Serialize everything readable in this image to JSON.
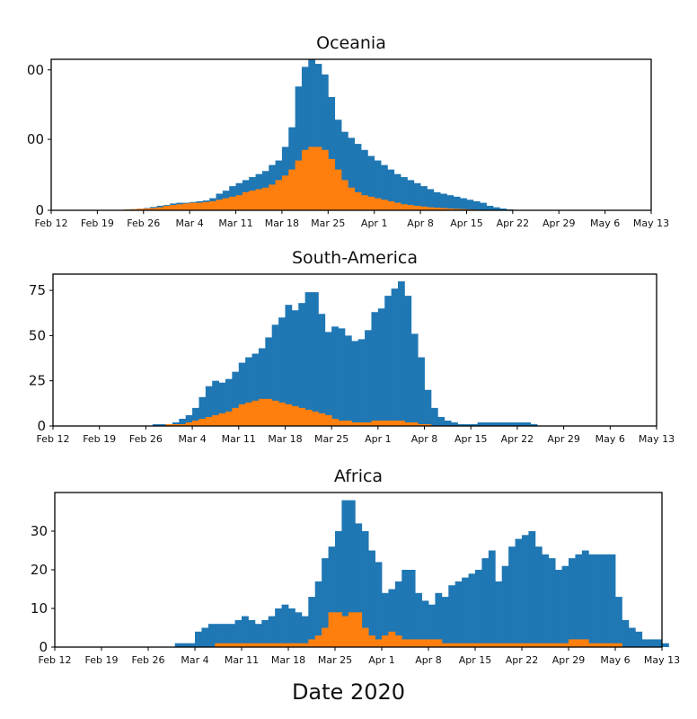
{
  "figure": {
    "xlabel": "Date 2020"
  },
  "colors": {
    "series_blue": "#1f77b4",
    "series_orange": "#ff7f0e",
    "axis": "#000000"
  },
  "chart_data": [
    {
      "type": "bar",
      "stacked": false,
      "title": "Oceania",
      "xlabel": "",
      "ylabel": "",
      "x_tick_labels": [
        "Feb 12",
        "Feb 19",
        "Feb 26",
        "Mar 4",
        "Mar 11",
        "Mar 18",
        "Mar 25",
        "Apr 1",
        "Apr 8",
        "Apr 15",
        "Apr 22",
        "Apr 29",
        "May 6",
        "May 13"
      ],
      "y_tick_labels": [
        "0",
        "00",
        "00"
      ],
      "y_tick_fractions": [
        0,
        0.47,
        0.93
      ],
      "ylim": [
        0,
        1
      ],
      "grid": false,
      "start_date": "2020-02-12",
      "series": [
        {
          "values": [
            0,
            0,
            0,
            0,
            0,
            0,
            0,
            0,
            0,
            0,
            0.003,
            0.005,
            0.007,
            0.01,
            0.015,
            0.022,
            0.03,
            0.035,
            0.045,
            0.05,
            0.05,
            0.055,
            0.06,
            0.065,
            0.08,
            0.11,
            0.13,
            0.16,
            0.18,
            0.2,
            0.22,
            0.24,
            0.26,
            0.3,
            0.33,
            0.42,
            0.55,
            0.82,
            0.95,
            1.0,
            0.97,
            0.9,
            0.75,
            0.6,
            0.52,
            0.48,
            0.44,
            0.4,
            0.36,
            0.33,
            0.3,
            0.27,
            0.24,
            0.22,
            0.2,
            0.18,
            0.16,
            0.14,
            0.12,
            0.11,
            0.1,
            0.09,
            0.08,
            0.07,
            0.06,
            0.05,
            0.03,
            0.02,
            0.012,
            0.006,
            0.003,
            0,
            0,
            0,
            0,
            0,
            0,
            0,
            0,
            0,
            0,
            0,
            0,
            0,
            0,
            0,
            0,
            0,
            0,
            0,
            0,
            0
          ]
        },
        {
          "values": [
            0,
            0,
            0,
            0,
            0,
            0,
            0,
            0,
            0,
            0,
            0.003,
            0.005,
            0.007,
            0.01,
            0.012,
            0.015,
            0.02,
            0.03,
            0.035,
            0.04,
            0.045,
            0.05,
            0.05,
            0.055,
            0.06,
            0.07,
            0.08,
            0.09,
            0.1,
            0.12,
            0.13,
            0.14,
            0.15,
            0.17,
            0.2,
            0.23,
            0.27,
            0.33,
            0.4,
            0.42,
            0.42,
            0.4,
            0.34,
            0.27,
            0.2,
            0.15,
            0.12,
            0.1,
            0.09,
            0.08,
            0.07,
            0.06,
            0.05,
            0.04,
            0.035,
            0.03,
            0.025,
            0.02,
            0.017,
            0.015,
            0.012,
            0.01,
            0.008,
            0.006,
            0.004,
            0.003,
            0.002,
            0.001,
            0,
            0,
            0,
            0,
            0,
            0,
            0,
            0,
            0,
            0,
            0,
            0,
            0,
            0,
            0,
            0,
            0,
            0,
            0,
            0,
            0,
            0,
            0
          ]
        }
      ]
    },
    {
      "type": "bar",
      "stacked": false,
      "title": "South-America",
      "xlabel": "",
      "ylabel": "",
      "x_tick_labels": [
        "Feb 12",
        "Feb 19",
        "Feb 26",
        "Mar 4",
        "Mar 11",
        "Mar 18",
        "Mar 25",
        "Apr 1",
        "Apr 8",
        "Apr 15",
        "Apr 22",
        "Apr 29",
        "May 6",
        "May 13"
      ],
      "y_ticks": [
        0,
        25,
        50,
        75
      ],
      "ylim": [
        0,
        84
      ],
      "grid": false,
      "start_date": "2020-02-12",
      "series": [
        {
          "values": [
            0,
            0,
            0,
            0,
            0,
            0,
            0,
            0,
            0,
            0,
            0,
            0,
            0,
            0,
            0,
            1,
            1,
            1,
            2,
            4,
            6,
            10,
            16,
            22,
            25,
            24,
            26,
            30,
            35,
            38,
            40,
            43,
            49,
            56,
            60,
            67,
            64,
            68,
            74,
            74,
            62,
            52,
            55,
            54,
            50,
            47,
            48,
            53,
            63,
            65,
            72,
            76,
            80,
            72,
            51,
            38,
            20,
            10,
            5,
            3,
            2,
            1,
            1,
            1,
            2,
            2,
            2,
            2,
            2,
            2,
            2,
            2,
            1,
            0,
            0,
            0,
            0,
            0,
            0,
            0,
            0,
            0,
            0,
            0,
            0,
            0,
            0,
            0,
            0,
            0,
            0
          ]
        },
        {
          "values": [
            0,
            0,
            0,
            0,
            0,
            0,
            0,
            0,
            0,
            0,
            0,
            0,
            0,
            0,
            0,
            0,
            0,
            1,
            1,
            1,
            2,
            3,
            4,
            5,
            6,
            7,
            8,
            10,
            12,
            13,
            14,
            15,
            15,
            14,
            13,
            12,
            11,
            10,
            9,
            8,
            7,
            6,
            4,
            3,
            3,
            2,
            2,
            2,
            3,
            3,
            3,
            3,
            3,
            2,
            2,
            1,
            1,
            0,
            0,
            0,
            0,
            0,
            0,
            0,
            0,
            0,
            0,
            0,
            0,
            0,
            0,
            0,
            0,
            0,
            0,
            0,
            0,
            0,
            0,
            0,
            0,
            0,
            0,
            0,
            0,
            0,
            0,
            0,
            0,
            0,
            0
          ]
        }
      ]
    },
    {
      "type": "bar",
      "stacked": false,
      "title": "Africa",
      "xlabel": "",
      "ylabel": "",
      "x_tick_labels": [
        "Feb 12",
        "Feb 19",
        "Feb 26",
        "Mar 4",
        "Mar 11",
        "Mar 18",
        "Mar 25",
        "Apr 1",
        "Apr 8",
        "Apr 15",
        "Apr 22",
        "Apr 29",
        "May 6",
        "May 13"
      ],
      "y_ticks": [
        0,
        10,
        20,
        30
      ],
      "ylim": [
        0,
        40
      ],
      "grid": false,
      "start_date": "2020-02-12",
      "series": [
        {
          "values": [
            0,
            0,
            0,
            0,
            0,
            0,
            0,
            0,
            0,
            0,
            0,
            0,
            0,
            0,
            0,
            0,
            0,
            0,
            1,
            1,
            1,
            4,
            5,
            6,
            6,
            6,
            6,
            7,
            8,
            7,
            6,
            7,
            8,
            10,
            11,
            10,
            9,
            8,
            13,
            17,
            23,
            26,
            30,
            38,
            38,
            32,
            30,
            25,
            22,
            14,
            15,
            17,
            20,
            20,
            14,
            12,
            11,
            14,
            13,
            16,
            17,
            18,
            19,
            20,
            23,
            25,
            17,
            21,
            26,
            28,
            29,
            30,
            26,
            24,
            23,
            20,
            21,
            23,
            24,
            25,
            24,
            24,
            24,
            24,
            13,
            7,
            5,
            4,
            2,
            2,
            2,
            1,
            0,
            0,
            0,
            0
          ]
        },
        {
          "values": [
            0,
            0,
            0,
            0,
            0,
            0,
            0,
            0,
            0,
            0,
            0,
            0,
            0,
            0,
            0,
            0,
            0,
            0,
            0,
            0,
            0,
            0,
            0,
            0,
            1,
            1,
            1,
            1,
            1,
            1,
            1,
            1,
            1,
            1,
            1,
            1,
            1,
            1,
            2,
            3,
            5,
            9,
            9,
            8,
            9,
            9,
            5,
            3,
            2,
            3,
            4,
            3,
            2,
            2,
            2,
            2,
            2,
            2,
            1,
            1,
            1,
            1,
            1,
            1,
            1,
            1,
            1,
            1,
            1,
            1,
            1,
            1,
            1,
            1,
            1,
            1,
            1,
            2,
            2,
            2,
            1,
            1,
            1,
            1,
            1,
            0,
            0,
            0,
            0,
            0,
            0,
            0,
            0,
            0,
            0,
            0
          ]
        }
      ]
    }
  ]
}
